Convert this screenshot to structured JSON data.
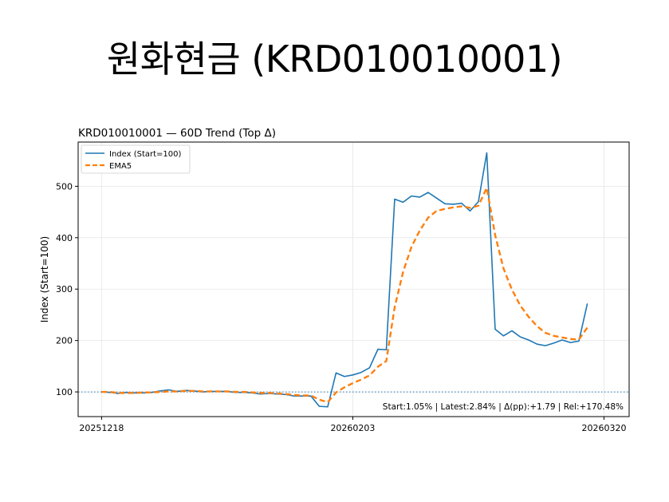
{
  "slide_title": "원화현금 (KRD010010001)",
  "chart_data": {
    "type": "line",
    "title": "KRD010010001 — 60D Trend (Top Δ)",
    "xlabel": "",
    "ylabel": "Index (Start=100)",
    "x_tick_labels": [
      {
        "index": 0,
        "label": "20251218"
      },
      {
        "index": 30,
        "label": "20260203"
      },
      {
        "index": 60,
        "label": "20260320"
      }
    ],
    "y_ticks": [
      100,
      200,
      300,
      400,
      500
    ],
    "xlim": [
      -2.8,
      63.0
    ],
    "ylim": [
      52,
      586
    ],
    "grid": true,
    "legend_position": "top-left",
    "reference_line": {
      "y": 100,
      "style": "dotted",
      "color": "#1f77b4"
    },
    "annotation": "Start:1.05% | Latest:2.84% | Δ(pp):+1.79 | Rel:+170.48%",
    "series": [
      {
        "name": "Index (Start=100)",
        "color": "#1f77b4",
        "style": "solid",
        "values": [
          100,
          99,
          97,
          99,
          98,
          98,
          99,
          102,
          104,
          101,
          103,
          102,
          100,
          101,
          101,
          101,
          99,
          99,
          98,
          96,
          97,
          96,
          95,
          92,
          92,
          92,
          72,
          71,
          137,
          130,
          133,
          138,
          147,
          183,
          182,
          475,
          469,
          481,
          479,
          488,
          477,
          466,
          465,
          467,
          452,
          470,
          565,
          222,
          209,
          219,
          207,
          201,
          193,
          190,
          195,
          201,
          196,
          199,
          271
        ]
      },
      {
        "name": "EMA5",
        "color": "#ff7f0e",
        "style": "dashed",
        "values": [
          100,
          100,
          98,
          98,
          98,
          99,
          99,
          100,
          101,
          101,
          102,
          102,
          101,
          101,
          101,
          101,
          100,
          100,
          99,
          98,
          98,
          97,
          96,
          94,
          93,
          93,
          85,
          80,
          99,
          109,
          117,
          124,
          132,
          149,
          160,
          265,
          333,
          382,
          414,
          439,
          452,
          456,
          459,
          461,
          458,
          462,
          497,
          405,
          340,
          299,
          268,
          246,
          228,
          215,
          209,
          206,
          203,
          202,
          225
        ]
      }
    ]
  }
}
